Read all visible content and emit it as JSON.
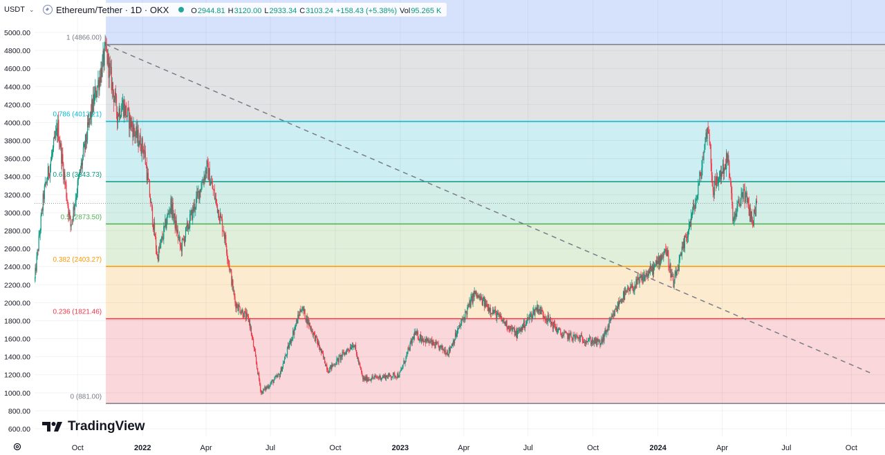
{
  "header": {
    "currency": "USDT",
    "symbol_title": "Ethereum/Tether · 1D · OKX",
    "ohlc": [
      {
        "label": "O",
        "value": "2944.81"
      },
      {
        "label": "H",
        "value": "3120.00"
      },
      {
        "label": "L",
        "value": "2933.34"
      },
      {
        "label": "C",
        "value": "3103.24"
      },
      {
        "label": "",
        "value": "+158.43 (+5.38%)"
      },
      {
        "label": "Vol",
        "value": "95.265 K"
      }
    ]
  },
  "branding": {
    "name": "TradingView"
  },
  "colors": {
    "up": "#089981",
    "down": "#f23645",
    "fib_top_zone": "#d6e2fb",
    "fib_1_0786": "#e2e3e5",
    "fib_0786_0618": "#cdeef2",
    "fib_0618_05": "#d3eee7",
    "fib_05_0382": "#e0efda",
    "fib_0382_0236": "#fdebd0",
    "fib_0236_0": "#fad7da"
  },
  "chart_data": {
    "type": "candlestick",
    "y_axis_labels": [
      "5000.00",
      "4800.00",
      "4600.00",
      "4400.00",
      "4200.00",
      "4000.00",
      "3800.00",
      "3600.00",
      "3400.00",
      "3200.00",
      "3000.00",
      "2800.00",
      "2600.00",
      "2400.00",
      "2200.00",
      "2000.00",
      "1800.00",
      "1600.00",
      "1400.00",
      "1200.00",
      "1000.00",
      "800.00",
      "600.00"
    ],
    "ylim": [
      600,
      5000
    ],
    "x_labels": [
      {
        "label": "Oct",
        "date": "2021-10-01"
      },
      {
        "label": "2022",
        "date": "2022-01-01"
      },
      {
        "label": "Apr",
        "date": "2022-04-01"
      },
      {
        "label": "Jul",
        "date": "2022-07-01"
      },
      {
        "label": "Oct",
        "date": "2022-10-01"
      },
      {
        "label": "2023",
        "date": "2023-01-01"
      },
      {
        "label": "Apr",
        "date": "2023-04-01"
      },
      {
        "label": "Jul",
        "date": "2023-07-01"
      },
      {
        "label": "Oct",
        "date": "2023-10-01"
      },
      {
        "label": "2024",
        "date": "2024-01-01"
      },
      {
        "label": "Apr",
        "date": "2024-04-01"
      },
      {
        "label": "Jul",
        "date": "2024-07-01"
      },
      {
        "label": "Oct",
        "date": "2024-10-01"
      }
    ],
    "fib_retracement": {
      "start_date": "2021-11-10",
      "levels": [
        {
          "ratio": "1",
          "price": 4866.0,
          "label": "1 (4866.00)",
          "color": "#787b86"
        },
        {
          "ratio": "0.786",
          "price": 4013.21,
          "label": "0.786 (4013.21)",
          "color": "#00bcd4"
        },
        {
          "ratio": "0.618",
          "price": 3343.73,
          "label": "0.618 (3343.73)",
          "color": "#089981"
        },
        {
          "ratio": "0.5",
          "price": 2873.5,
          "label": "0.5 (2873.50)",
          "color": "#4caf50"
        },
        {
          "ratio": "0.382",
          "price": 2403.27,
          "label": "0.382 (2403.27)",
          "color": "#ff9800"
        },
        {
          "ratio": "0.236",
          "price": 1821.46,
          "label": "0.236 (1821.46)",
          "color": "#f23645"
        },
        {
          "ratio": "0",
          "price": 881.0,
          "label": "0 (881.00)",
          "color": "#787b86"
        }
      ]
    },
    "trend_line": {
      "start": {
        "date": "2021-11-10",
        "price": 4866
      },
      "end": {
        "date": "2024-10-28",
        "price": 1220
      }
    },
    "current_price": 3103.24,
    "price_path": [
      {
        "date": "2021-08-01",
        "price": 2250
      },
      {
        "date": "2021-08-14",
        "price": 3200
      },
      {
        "date": "2021-09-03",
        "price": 3950
      },
      {
        "date": "2021-09-21",
        "price": 2850
      },
      {
        "date": "2021-10-01",
        "price": 3300
      },
      {
        "date": "2021-10-21",
        "price": 4150
      },
      {
        "date": "2021-11-10",
        "price": 4800
      },
      {
        "date": "2021-11-26",
        "price": 4100
      },
      {
        "date": "2021-12-04",
        "price": 4200
      },
      {
        "date": "2021-12-20",
        "price": 3900
      },
      {
        "date": "2022-01-03",
        "price": 3700
      },
      {
        "date": "2022-01-22",
        "price": 2500
      },
      {
        "date": "2022-02-10",
        "price": 3100
      },
      {
        "date": "2022-02-24",
        "price": 2600
      },
      {
        "date": "2022-04-02",
        "price": 3500
      },
      {
        "date": "2022-04-26",
        "price": 2800
      },
      {
        "date": "2022-05-12",
        "price": 2000
      },
      {
        "date": "2022-06-01",
        "price": 1800
      },
      {
        "date": "2022-06-18",
        "price": 1000
      },
      {
        "date": "2022-07-14",
        "price": 1200
      },
      {
        "date": "2022-08-14",
        "price": 1950
      },
      {
        "date": "2022-09-06",
        "price": 1550
      },
      {
        "date": "2022-09-21",
        "price": 1250
      },
      {
        "date": "2022-10-27",
        "price": 1550
      },
      {
        "date": "2022-11-09",
        "price": 1150
      },
      {
        "date": "2022-12-31",
        "price": 1200
      },
      {
        "date": "2023-01-21",
        "price": 1650
      },
      {
        "date": "2023-03-10",
        "price": 1450
      },
      {
        "date": "2023-04-16",
        "price": 2100
      },
      {
        "date": "2023-06-15",
        "price": 1650
      },
      {
        "date": "2023-07-14",
        "price": 1950
      },
      {
        "date": "2023-08-17",
        "price": 1650
      },
      {
        "date": "2023-10-12",
        "price": 1550
      },
      {
        "date": "2023-11-10",
        "price": 2050
      },
      {
        "date": "2023-12-28",
        "price": 2400
      },
      {
        "date": "2024-01-12",
        "price": 2600
      },
      {
        "date": "2024-01-23",
        "price": 2200
      },
      {
        "date": "2024-02-26",
        "price": 3200
      },
      {
        "date": "2024-03-12",
        "price": 4000
      },
      {
        "date": "2024-03-19",
        "price": 3250
      },
      {
        "date": "2024-04-09",
        "price": 3600
      },
      {
        "date": "2024-04-17",
        "price": 2900
      },
      {
        "date": "2024-05-01",
        "price": 3250
      },
      {
        "date": "2024-05-14",
        "price": 2900
      },
      {
        "date": "2024-05-20",
        "price": 3103
      }
    ]
  }
}
